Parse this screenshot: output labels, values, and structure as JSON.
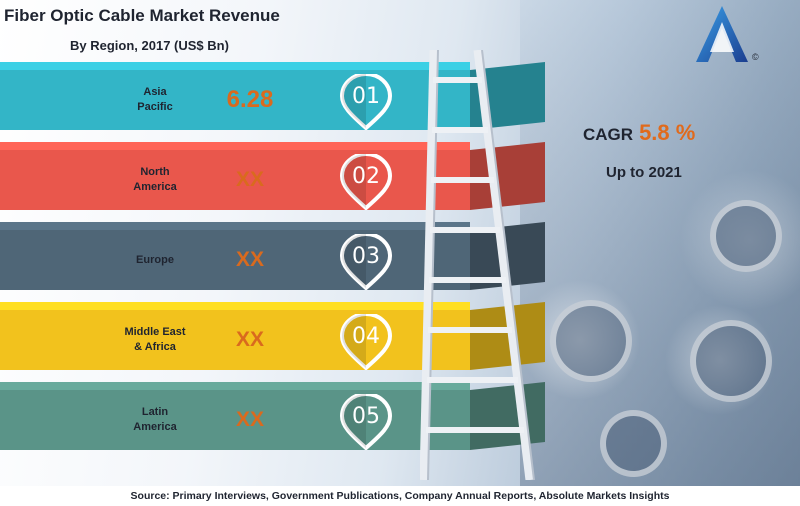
{
  "header": {
    "title": "Fiber Optic Cable Market Revenue",
    "subtitle": "By Region, 2017 (US$ Bn)"
  },
  "cagr": {
    "label": "CAGR",
    "value": "5.8 %",
    "period": "Up to 2021"
  },
  "footer": {
    "source": "Source: Primary Interviews, Government Publications, Company Annual Reports, Absolute Markets Insights"
  },
  "logo": {
    "icon": "triangle-a-logo",
    "mark": "©"
  },
  "colors": {
    "teal": "#33b5c7",
    "red": "#e9574c",
    "slate": "#4f6677",
    "yellow": "#f2c21d",
    "green": "#5a9488",
    "value_orange": "#d96a1e"
  },
  "chart_data": {
    "type": "bar",
    "title": "Fiber Optic Cable Market Revenue",
    "subtitle": "By Region, 2017 (US$ Bn)",
    "categories": [
      "Asia Pacific",
      "North America",
      "Europe",
      "Middle East & Africa",
      "Latin America"
    ],
    "values": [
      6.28,
      null,
      null,
      null,
      null
    ],
    "rows": [
      {
        "rank": "01",
        "region": "Asia\nPacific",
        "value": "6.28",
        "color": "#33b5c7"
      },
      {
        "rank": "02",
        "region": "North\nAmerica",
        "value": "XX",
        "color": "#e9574c"
      },
      {
        "rank": "03",
        "region": "Europe",
        "value": "XX",
        "color": "#4f6677"
      },
      {
        "rank": "04",
        "region": "Middle East\n& Africa",
        "value": "XX",
        "color": "#f2c21d"
      },
      {
        "rank": "05",
        "region": "Latin\nAmerica",
        "value": "XX",
        "color": "#5a9488"
      }
    ]
  }
}
